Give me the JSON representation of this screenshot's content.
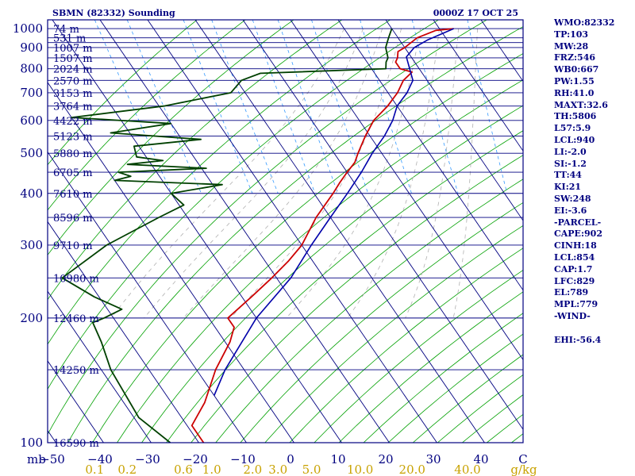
{
  "header": {
    "station": "SBMN (82332) Sounding",
    "time": "0000Z 17 OCT 25"
  },
  "indices": [
    "WMO:82332",
    "TP:103",
    "MW:28",
    "FRZ:546",
    "WB0:667",
    "PW:1.55",
    "RH:41.0",
    "MAXT:32.6",
    "TH:5806",
    "L57:5.9",
    "LCL:940",
    "LI:-2.0",
    "SI:-1.2",
    "TT:44",
    "KI:21",
    "SW:248",
    "EI:-3.6",
    "-PARCEL-",
    "CAPE:902",
    "CINH:18",
    "LCL:854",
    "CAP:1.7",
    "LFC:829",
    "EL:789",
    "MPL:779",
    "-WIND-",
    "",
    "EHI:-56.4"
  ],
  "colors": {
    "frame": "#000080",
    "isobar": "#000080",
    "isotherm": "#000080",
    "dry_adiabat": "#00a000",
    "moist_adiabat": "#b0b0b0",
    "mixing_ratio": "#3399ff",
    "temperature": "#cc0000",
    "dewpoint": "#004000",
    "parcel": "#0000aa",
    "mixing_label": "#c8a200"
  },
  "chart_data": {
    "type": "line",
    "title": "SBMN (82332) Sounding",
    "subtitle": "0000Z 17 OCT 25",
    "x_unit": "C",
    "y_unit": "mb",
    "pressure_ticks": [
      100,
      200,
      300,
      400,
      500,
      600,
      700,
      800,
      900,
      1000
    ],
    "pressure_levels": [
      100,
      150,
      200,
      250,
      300,
      350,
      400,
      450,
      500,
      550,
      600,
      650,
      700,
      750,
      800,
      850,
      900,
      925,
      950,
      1000
    ],
    "height_labels": [
      {
        "p": 100,
        "label": "16590 m"
      },
      {
        "p": 150,
        "label": "14250 m"
      },
      {
        "p": 200,
        "label": "12460 m"
      },
      {
        "p": 250,
        "label": "10980 m"
      },
      {
        "p": 300,
        "label": "9710 m"
      },
      {
        "p": 350,
        "label": "8596 m"
      },
      {
        "p": 400,
        "label": "7610 m"
      },
      {
        "p": 450,
        "label": "6705 m"
      },
      {
        "p": 500,
        "label": "5880 m"
      },
      {
        "p": 550,
        "label": "5123 m"
      },
      {
        "p": 600,
        "label": "4422 m"
      },
      {
        "p": 650,
        "label": "3764 m"
      },
      {
        "p": 700,
        "label": "3153 m"
      },
      {
        "p": 750,
        "label": "2570 m"
      },
      {
        "p": 800,
        "label": "2024 m"
      },
      {
        "p": 850,
        "label": "1507 m"
      },
      {
        "p": 900,
        "label": "1007 m"
      },
      {
        "p": 950,
        "label": "531 m"
      },
      {
        "p": 1000,
        "label": "74 m"
      }
    ],
    "temp_ticks": [
      -50,
      -40,
      -30,
      -20,
      -10,
      0,
      10,
      20,
      30,
      40
    ],
    "temp_tick_labels": [
      "−50",
      "−40",
      "−30",
      "−20",
      "−10",
      "0",
      "10",
      "20",
      "30",
      "40"
    ],
    "axis_end_label": "C",
    "mb_label": "mb",
    "mixing_ratio_labels": [
      {
        "w": 0.1,
        "label": "0.1"
      },
      {
        "w": 0.2,
        "label": "0.2"
      },
      {
        "w": 0.6,
        "label": "0.6"
      },
      {
        "w": 1.0,
        "label": "1.0"
      },
      {
        "w": 2.0,
        "label": "2.0"
      },
      {
        "w": 3.0,
        "label": "3.0"
      },
      {
        "w": 5.0,
        "label": "5.0"
      },
      {
        "w": 10.0,
        "label": "10.0"
      },
      {
        "w": 20.0,
        "label": "20.0"
      },
      {
        "w": 40.0,
        "label": "40.0"
      }
    ],
    "mixing_ratio_unit": "g/kg",
    "series": [
      {
        "key": "temperature",
        "points": [
          [
            100,
            -79
          ],
          [
            110,
            -79
          ],
          [
            125,
            -73
          ],
          [
            150,
            -66
          ],
          [
            175,
            -59
          ],
          [
            190,
            -56
          ],
          [
            200,
            -56
          ],
          [
            225,
            -48
          ],
          [
            250,
            -41
          ],
          [
            275,
            -35
          ],
          [
            300,
            -30
          ],
          [
            350,
            -23
          ],
          [
            400,
            -16
          ],
          [
            425,
            -13
          ],
          [
            450,
            -10
          ],
          [
            475,
            -7
          ],
          [
            500,
            -5
          ],
          [
            550,
            -1
          ],
          [
            600,
            3
          ],
          [
            650,
            8
          ],
          [
            700,
            12
          ],
          [
            750,
            15
          ],
          [
            785,
            18
          ],
          [
            800,
            16
          ],
          [
            830,
            16
          ],
          [
            850,
            17
          ],
          [
            880,
            18
          ],
          [
            900,
            20
          ],
          [
            950,
            24
          ],
          [
            990,
            29
          ],
          [
            1000,
            33
          ]
        ]
      },
      {
        "key": "dewpoint",
        "points": [
          [
            100,
            -86
          ],
          [
            115,
            -89
          ],
          [
            150,
            -88
          ],
          [
            175,
            -86
          ],
          [
            195,
            -85
          ],
          [
            200,
            -82
          ],
          [
            210,
            -77
          ],
          [
            225,
            -81
          ],
          [
            250,
            -85
          ],
          [
            300,
            -71
          ],
          [
            350,
            -56
          ],
          [
            375,
            -49
          ],
          [
            400,
            -50
          ],
          [
            420,
            -38
          ],
          [
            430,
            -60
          ],
          [
            440,
            -56
          ],
          [
            450,
            -58
          ],
          [
            460,
            -39
          ],
          [
            470,
            -55
          ],
          [
            480,
            -47
          ],
          [
            490,
            -52
          ],
          [
            520,
            -51
          ],
          [
            540,
            -36
          ],
          [
            560,
            -54
          ],
          [
            590,
            -40
          ],
          [
            600,
            -50
          ],
          [
            610,
            -60
          ],
          [
            650,
            -39
          ],
          [
            700,
            -23
          ],
          [
            750,
            -19
          ],
          [
            780,
            -14
          ],
          [
            800,
            13
          ],
          [
            830,
            14
          ],
          [
            850,
            15
          ],
          [
            900,
            16
          ],
          [
            950,
            18
          ],
          [
            1000,
            20
          ]
        ]
      },
      {
        "key": "parcel",
        "points": [
          [
            1000,
            33
          ],
          [
            940,
            26
          ],
          [
            900,
            22
          ],
          [
            854,
            19
          ],
          [
            800,
            18
          ],
          [
            750,
            17
          ],
          [
            700,
            14
          ],
          [
            650,
            10
          ],
          [
            600,
            7
          ],
          [
            550,
            3
          ],
          [
            500,
            -2
          ],
          [
            450,
            -7
          ],
          [
            400,
            -13
          ],
          [
            350,
            -20
          ],
          [
            300,
            -28
          ],
          [
            250,
            -37
          ],
          [
            200,
            -50
          ],
          [
            150,
            -64
          ],
          [
            130,
            -70
          ]
        ]
      }
    ],
    "dry_adiabats_theta_K": [
      250,
      260,
      270,
      280,
      290,
      300,
      310,
      320,
      330,
      340,
      350,
      360,
      370,
      380,
      390,
      400,
      410,
      420,
      430,
      440,
      450,
      460,
      470,
      480,
      490,
      500,
      510,
      520
    ],
    "moist_adiabats_start_C": [
      10,
      14,
      18,
      22,
      26,
      30,
      34,
      38
    ],
    "mixing_ratios_gkg": [
      0.1,
      0.2,
      0.6,
      1.0,
      2.0,
      3.0,
      5.0,
      10.0,
      20.0,
      40.0
    ]
  }
}
